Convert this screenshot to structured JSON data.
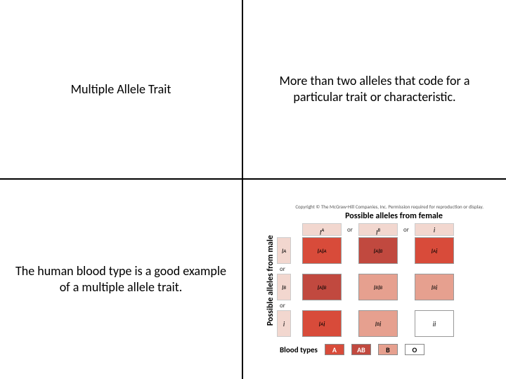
{
  "quadrants": {
    "top_left": "Multiple Allele Trait",
    "top_right": "More than two alleles that code for a particular trait or characteristic.",
    "bottom_left": "The human blood type is a good example of a multiple allele trait."
  },
  "diagram": {
    "copyright": "Copyright © The McGraw-Hill Companies, Inc. Permission required for reproduction or display.",
    "top_heading": "Possible alleles from female",
    "left_heading": "Possible alleles from male",
    "or_label": "or",
    "col_alleles_html": [
      "I<sup>A</sup>",
      "I<sup>B</sup>",
      "i"
    ],
    "row_alleles_html": [
      "I<sup>A</sup>",
      "I<sup>B</sup>",
      "i"
    ],
    "cells": [
      [
        {
          "html": "I<sup>A</sup>I<sup>A</sup>",
          "color": "#d84b3a"
        },
        {
          "html": "I<sup>A</sup>I<sup>B</sup>",
          "color": "#c1493f"
        },
        {
          "html": "I<sup>A</sup>i",
          "color": "#d84b3a"
        }
      ],
      [
        {
          "html": "I<sup>A</sup>I<sup>B</sup>",
          "color": "#c1493f"
        },
        {
          "html": "I<sup>B</sup>I<sup>B</sup>",
          "color": "#e6a08f"
        },
        {
          "html": "I<sup>B</sup>i",
          "color": "#e6a08f"
        }
      ],
      [
        {
          "html": "I<sup>A</sup>i",
          "color": "#d84b3a"
        },
        {
          "html": "I<sup>B</sup>i",
          "color": "#e6a08f"
        },
        {
          "html": "ii",
          "color": "#ffffff"
        }
      ]
    ],
    "header_bg": "#f2d7cf",
    "blood_types_label": "Blood types",
    "blood_types": [
      {
        "label": "A",
        "color": "#d84b3a",
        "text": "#ffffff"
      },
      {
        "label": "AB",
        "color": "#c1493f",
        "text": "#ffffff"
      },
      {
        "label": "B",
        "color": "#e6a08f",
        "text": "#000000"
      },
      {
        "label": "O",
        "color": "#ffffff",
        "text": "#000000"
      }
    ]
  }
}
